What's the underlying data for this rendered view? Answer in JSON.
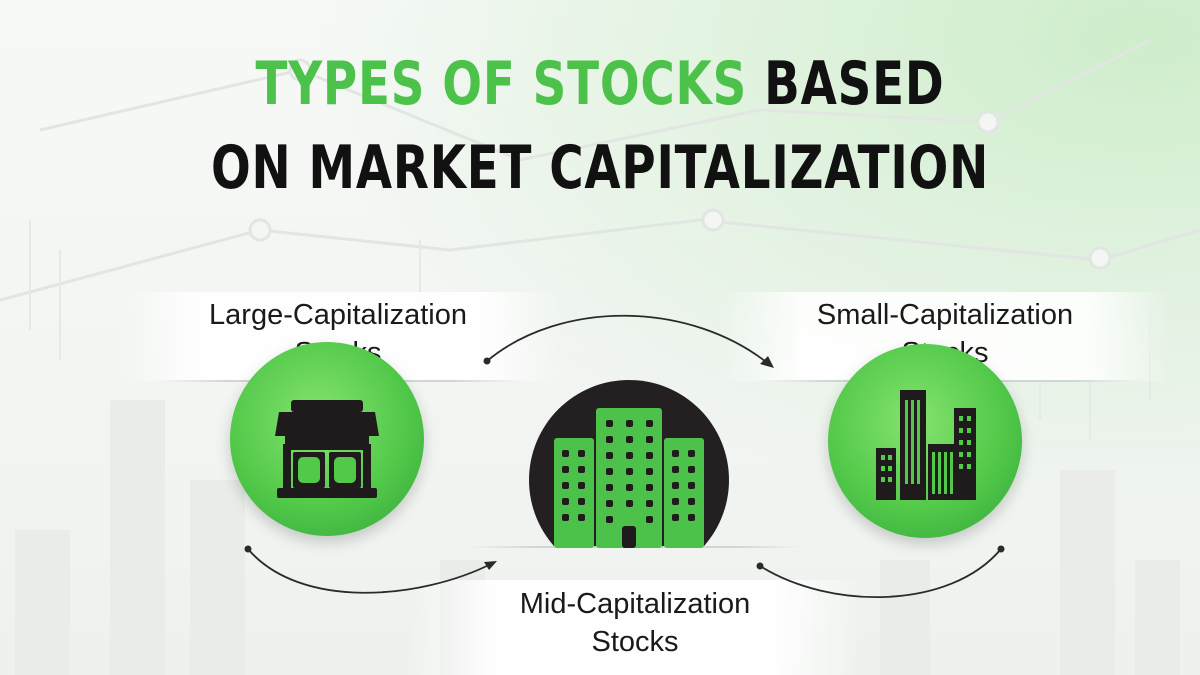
{
  "title": {
    "line1_accent": "TYPES OF STOCKS",
    "line1_rest": " BASED",
    "line2": "ON MARKET CAPITALIZATION"
  },
  "nodes": [
    {
      "label_line1": "Large-Capitalization",
      "label_line2": "Stocks",
      "icon": "storefront-icon"
    },
    {
      "label_line1": "Small-Capitalization",
      "label_line2": "Stocks",
      "icon": "city-buildings-icon"
    },
    {
      "label_line1": "Mid-Capitalization",
      "label_line2": "Stocks",
      "icon": "office-building-icon"
    }
  ],
  "colors": {
    "accent": "#4cc24a",
    "circle_green": "#53c94a",
    "circle_dark": "#241f20",
    "icon_dark": "#1f1b1c",
    "text": "#111111"
  }
}
